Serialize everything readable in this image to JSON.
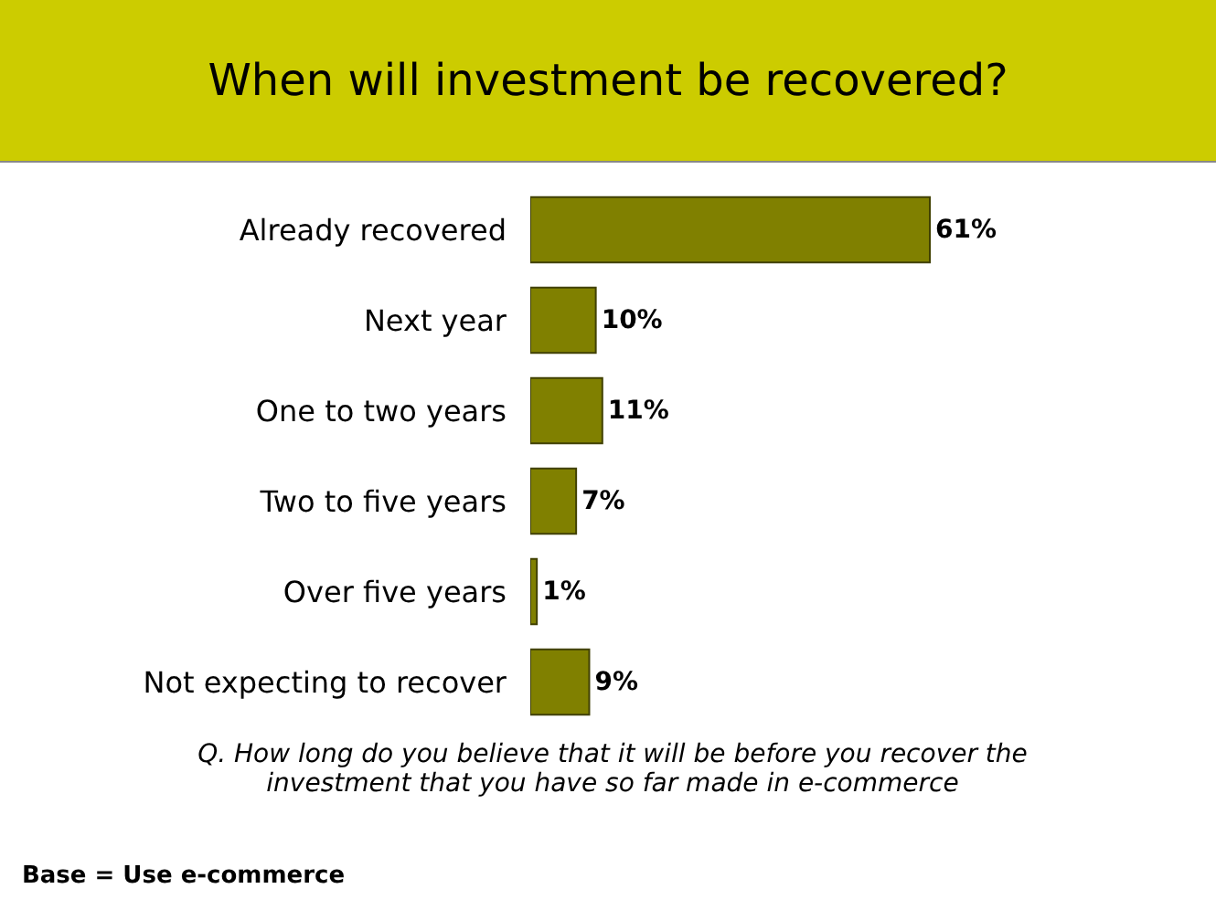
{
  "chart_data": {
    "type": "bar",
    "orientation": "horizontal",
    "title": "When will investment be recovered?",
    "categories": [
      "Already recovered",
      "Next year",
      "One to two years",
      "Two to five years",
      "Over five years",
      "Not expecting to recover"
    ],
    "values": [
      61,
      10,
      11,
      7,
      1,
      9
    ],
    "value_labels": [
      "61%",
      "10%",
      "11%",
      "7%",
      "1%",
      "9%"
    ],
    "color": "#808000",
    "tick_labels": "y",
    "annotations": [
      "Q. How long do you believe that it will be before you recover the investment that you have so far made in e-commerce",
      "Base = Use e-commerce"
    ]
  }
}
